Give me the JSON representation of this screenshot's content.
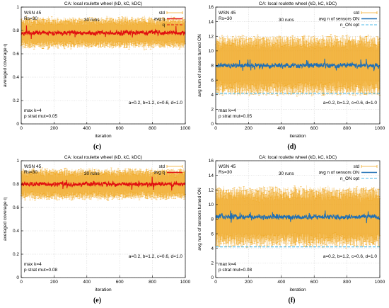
{
  "chart_data": [
    {
      "panel_label": "(c)",
      "type": "line",
      "title": "CA: local roulette wheel (kD, kC, kDC)",
      "xlabel": "iteration",
      "ylabel": "averaged coverage q",
      "xlim": [
        0,
        1000
      ],
      "ylim": [
        0,
        1
      ],
      "xticks": [
        0,
        200,
        400,
        600,
        800,
        1000
      ],
      "yticks": [
        0,
        0.2,
        0.4,
        0.6,
        0.8,
        1
      ],
      "ytick_labels": [
        "0",
        "0.2",
        "0.4",
        "0.6",
        "0.8",
        "1"
      ],
      "grid": true,
      "legend_position": "top-right",
      "annotations": [
        "WSN 45",
        "Rs=30",
        "30 runs",
        "a=0.2, b=1.2, c=0.6, d=1.0",
        "max k=4",
        "p strat mut=0.05"
      ],
      "series": [
        {
          "name": "std",
          "color": "#f0a820",
          "style": "errorbar",
          "mean": 0.78,
          "spread": 0.1
        },
        {
          "name": "avg q",
          "color": "#e01010",
          "style": "line",
          "mean": 0.78,
          "noise": 0.035
        },
        {
          "name": "q",
          "color": "#e01010",
          "style": "dashed",
          "value": 0.78
        }
      ]
    },
    {
      "panel_label": "(d)",
      "type": "line",
      "title": "CA: local roulette wheel (kD, kC, kDC)",
      "xlabel": "iteration",
      "ylabel": "avg num of sensors turned ON",
      "xlim": [
        0,
        1000
      ],
      "ylim": [
        0,
        16
      ],
      "xticks": [
        0,
        200,
        400,
        600,
        800,
        1000
      ],
      "yticks": [
        0,
        2,
        4,
        6,
        8,
        10,
        12,
        14,
        16
      ],
      "ytick_labels": [
        "0",
        "2",
        "4",
        "6",
        "8",
        "10",
        "12",
        "14",
        "16"
      ],
      "grid": true,
      "legend_position": "top-right",
      "annotations": [
        "WSN 45",
        "Rs=30",
        "30 runs",
        "a=0.2, b=1.2, c=0.6, d=1.0",
        "max k=4",
        "p strat mut=0.05"
      ],
      "series": [
        {
          "name": "std",
          "color": "#f0a820",
          "style": "errorbar",
          "mean": 8.0,
          "spread": 3.2
        },
        {
          "name": "avg n of sensors ON",
          "color": "#1f6fb5",
          "style": "line",
          "mean": 8.0,
          "noise": 0.6
        },
        {
          "name": "n_ON opt",
          "color": "#4ab8e8",
          "style": "dashed",
          "value": 4.2
        }
      ]
    },
    {
      "panel_label": "(e)",
      "type": "line",
      "title": "CA: local roulette wheel (kD, kC, kDC)",
      "xlabel": "iteration",
      "ylabel": "averaged coverage q",
      "xlim": [
        0,
        1000
      ],
      "ylim": [
        0,
        1
      ],
      "xticks": [
        0,
        200,
        400,
        600,
        800,
        1000
      ],
      "yticks": [
        0,
        0.2,
        0.4,
        0.6,
        0.8,
        1
      ],
      "ytick_labels": [
        "0",
        "0.2",
        "0.4",
        "0.6",
        "0.8",
        "1"
      ],
      "grid": true,
      "legend_position": "top-right",
      "annotations": [
        "WSN 45",
        "Rs=30",
        "30 runs",
        "a=0.2, b=1.2, c=0.6, d=1.0",
        "max k=4",
        "p strat mut=0.08"
      ],
      "series": [
        {
          "name": "std",
          "color": "#f0a820",
          "style": "errorbar",
          "mean": 0.8,
          "spread": 0.1
        },
        {
          "name": "avg q",
          "color": "#e01010",
          "style": "line",
          "mean": 0.8,
          "noise": 0.035
        }
      ]
    },
    {
      "panel_label": "(f)",
      "type": "line",
      "title": "CA: local roulette wheel (kD, kC, kDC)",
      "xlabel": "iteration",
      "ylabel": "avg num of sensors turned ON",
      "xlim": [
        0,
        1000
      ],
      "ylim": [
        0,
        16
      ],
      "xticks": [
        0,
        200,
        400,
        600,
        800,
        1000
      ],
      "yticks": [
        0,
        2,
        4,
        6,
        8,
        10,
        12,
        14,
        16
      ],
      "ytick_labels": [
        "0",
        "2",
        "4",
        "6",
        "8",
        "10",
        "12",
        "14",
        "16"
      ],
      "grid": true,
      "legend_position": "top-right",
      "annotations": [
        "WSN 45",
        "Rs=30",
        "30 runs",
        "a=0.2, b=1.2, c=0.6, d=1.0",
        "max k=4",
        "p strat mut=0.08"
      ],
      "series": [
        {
          "name": "std",
          "color": "#f0a820",
          "style": "errorbar",
          "mean": 8.3,
          "spread": 3.2
        },
        {
          "name": "avg n of sensors ON",
          "color": "#1f6fb5",
          "style": "line",
          "mean": 8.3,
          "noise": 0.6
        },
        {
          "name": "n_ON opt",
          "color": "#4ab8e8",
          "style": "dashed",
          "value": 4.2
        }
      ]
    }
  ]
}
